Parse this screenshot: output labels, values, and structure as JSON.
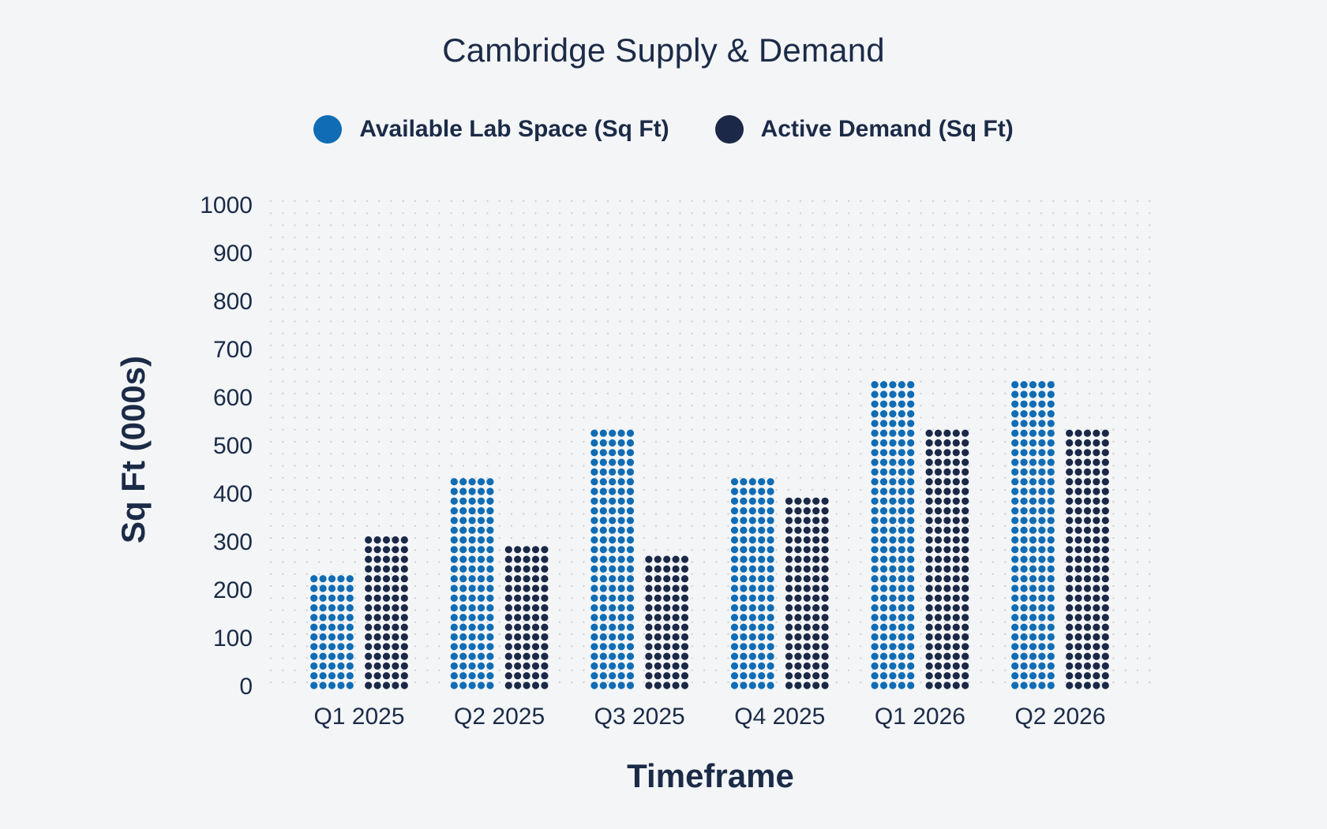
{
  "chart_data": {
    "type": "bar",
    "title": "Cambridge Supply & Demand",
    "xlabel": "Timeframe",
    "ylabel": "Sq Ft (000s)",
    "categories": [
      "Q1 2025",
      "Q2 2025",
      "Q3 2025",
      "Q4 2025",
      "Q1 2026",
      "Q2 2026"
    ],
    "series": [
      {
        "name": "Available Lab Space (Sq Ft)",
        "color": "#0f6cb5",
        "values": [
          230,
          430,
          540,
          430,
          630,
          630
        ]
      },
      {
        "name": "Active Demand (Sq Ft)",
        "color": "#1b2847",
        "values": [
          320,
          295,
          275,
          385,
          540,
          540
        ]
      }
    ],
    "ylim": [
      0,
      1000
    ],
    "yticks": [
      "0",
      "100",
      "200",
      "300",
      "400",
      "500",
      "600",
      "700",
      "800",
      "900",
      "1000"
    ],
    "grid": true,
    "legend_position": "top-center",
    "mark_style": "dot-matrix"
  }
}
